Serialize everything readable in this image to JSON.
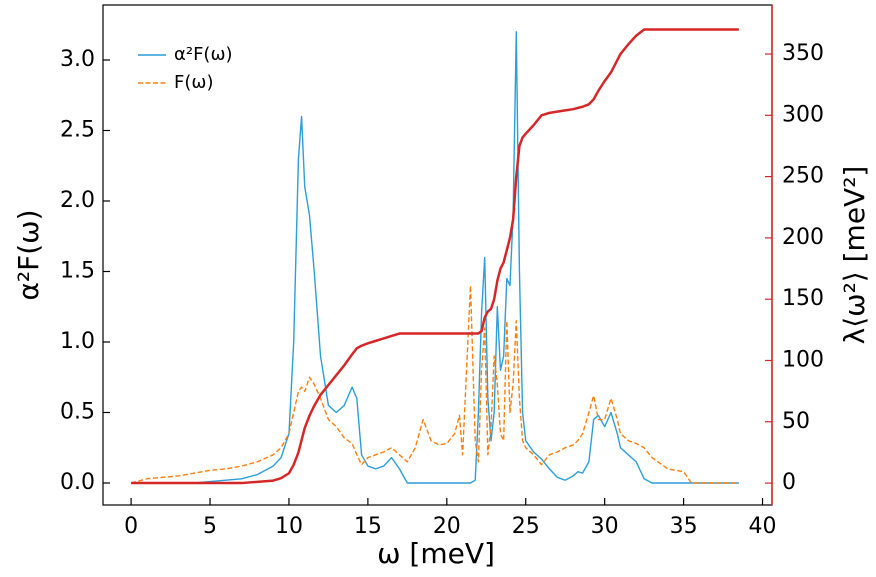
{
  "chart_data": {
    "type": "line",
    "xlabel": "ω [meV]",
    "ylabel": "α²F(ω)",
    "y2label": "λ⟨ω²⟩ [meV²]",
    "x": [
      0,
      1,
      2,
      3,
      4,
      5,
      6,
      7,
      8,
      9,
      9.5,
      10,
      10.3,
      10.6,
      10.8,
      11,
      11.3,
      11.6,
      12,
      12.5,
      13,
      13.5,
      14,
      14.3,
      14.6,
      15,
      15.5,
      16,
      16.5,
      17,
      17.5,
      18,
      18.5,
      19,
      19.5,
      20,
      20.5,
      20.8,
      21,
      21.5,
      21.8,
      22,
      22.2,
      22.4,
      22.6,
      22.8,
      23,
      23.2,
      23.4,
      23.6,
      23.8,
      24,
      24.2,
      24.4,
      24.6,
      24.8,
      25,
      25.5,
      26,
      26.5,
      27,
      27.5,
      28,
      28.3,
      28.6,
      29,
      29.3,
      29.6,
      30,
      30.4,
      30.8,
      31,
      31.5,
      32,
      32.5,
      33,
      34,
      35,
      35.5,
      36,
      37,
      38,
      38.5
    ],
    "series": [
      {
        "name": "α²F(ω)",
        "color": "#2c9ed8",
        "dash": false,
        "values": [
          0,
          0,
          0,
          0,
          0,
          0.01,
          0.02,
          0.03,
          0.06,
          0.12,
          0.18,
          0.35,
          1.0,
          2.3,
          2.6,
          2.1,
          1.9,
          1.5,
          0.9,
          0.55,
          0.5,
          0.55,
          0.68,
          0.6,
          0.2,
          0.12,
          0.1,
          0.12,
          0.18,
          0.1,
          0,
          0,
          0,
          0,
          0,
          0,
          0,
          0,
          0,
          0,
          0.02,
          0.5,
          1.2,
          1.6,
          0.6,
          0.3,
          0.5,
          1.25,
          0.8,
          0.9,
          1.45,
          1.4,
          1.9,
          3.2,
          1.5,
          0.5,
          0.3,
          0.22,
          0.17,
          0.1,
          0.04,
          0.02,
          0.05,
          0.08,
          0.07,
          0.15,
          0.45,
          0.48,
          0.4,
          0.5,
          0.35,
          0.25,
          0.2,
          0.15,
          0.03,
          0,
          0,
          0,
          0,
          0,
          0,
          0,
          0
        ]
      },
      {
        "name": "F(ω)",
        "color": "#ff7f0e",
        "dash": true,
        "values": [
          0,
          0.03,
          0.04,
          0.05,
          0.07,
          0.09,
          0.1,
          0.12,
          0.15,
          0.2,
          0.25,
          0.35,
          0.5,
          0.65,
          0.68,
          0.65,
          0.75,
          0.7,
          0.6,
          0.45,
          0.4,
          0.32,
          0.28,
          0.2,
          0.13,
          0.18,
          0.2,
          0.22,
          0.25,
          0.2,
          0.15,
          0.25,
          0.45,
          0.3,
          0.27,
          0.28,
          0.35,
          0.48,
          0.2,
          1.4,
          0.3,
          0.15,
          0.8,
          1.1,
          0.2,
          0.4,
          0.9,
          0.7,
          0.35,
          0.3,
          1.15,
          0.5,
          0.7,
          1.15,
          0.6,
          0.3,
          0.25,
          0.2,
          0.13,
          0.2,
          0.22,
          0.25,
          0.27,
          0.3,
          0.35,
          0.5,
          0.62,
          0.45,
          0.45,
          0.6,
          0.45,
          0.35,
          0.3,
          0.28,
          0.25,
          0.18,
          0.1,
          0.08,
          0,
          0,
          0,
          0,
          0
        ]
      },
      {
        "color": "#d62728",
        "axis": "y2",
        "dash": false,
        "values": [
          0,
          0,
          0,
          0,
          0,
          0,
          0,
          0,
          1,
          2,
          4,
          8,
          15,
          25,
          35,
          45,
          55,
          63,
          72,
          80,
          88,
          96,
          105,
          110,
          112,
          114,
          116,
          118,
          120,
          122,
          122,
          122,
          122,
          122,
          122,
          122,
          122,
          122,
          122,
          122,
          122,
          122,
          124,
          135,
          140,
          142,
          150,
          165,
          175,
          180,
          190,
          200,
          215,
          250,
          275,
          282,
          285,
          292,
          300,
          302,
          303,
          304,
          305,
          306,
          307,
          309,
          313,
          320,
          328,
          335,
          345,
          350,
          358,
          365,
          370,
          370,
          370,
          370,
          370,
          370,
          370,
          370,
          370
        ]
      }
    ],
    "xlim": [
      -1.78,
      40.6
    ],
    "xticks": [
      0,
      5,
      10,
      15,
      20,
      25,
      30,
      35,
      40
    ],
    "ylim": [
      -0.156,
      3.39
    ],
    "yticks": [
      {
        "value": 0,
        "label": "0.0"
      },
      {
        "value": 0.5,
        "label": "0.5"
      },
      {
        "value": 1,
        "label": "1.0"
      },
      {
        "value": 1.5,
        "label": "1.5"
      },
      {
        "value": 2,
        "label": "2.0"
      },
      {
        "value": 2.5,
        "label": "2.5"
      },
      {
        "value": 3,
        "label": "3.0"
      }
    ],
    "y2lim": [
      -17.9,
      390
    ],
    "y2ticks": [
      0,
      50,
      100,
      150,
      200,
      250,
      300,
      350
    ],
    "y2color": "#d62728",
    "legend": "upper left"
  }
}
